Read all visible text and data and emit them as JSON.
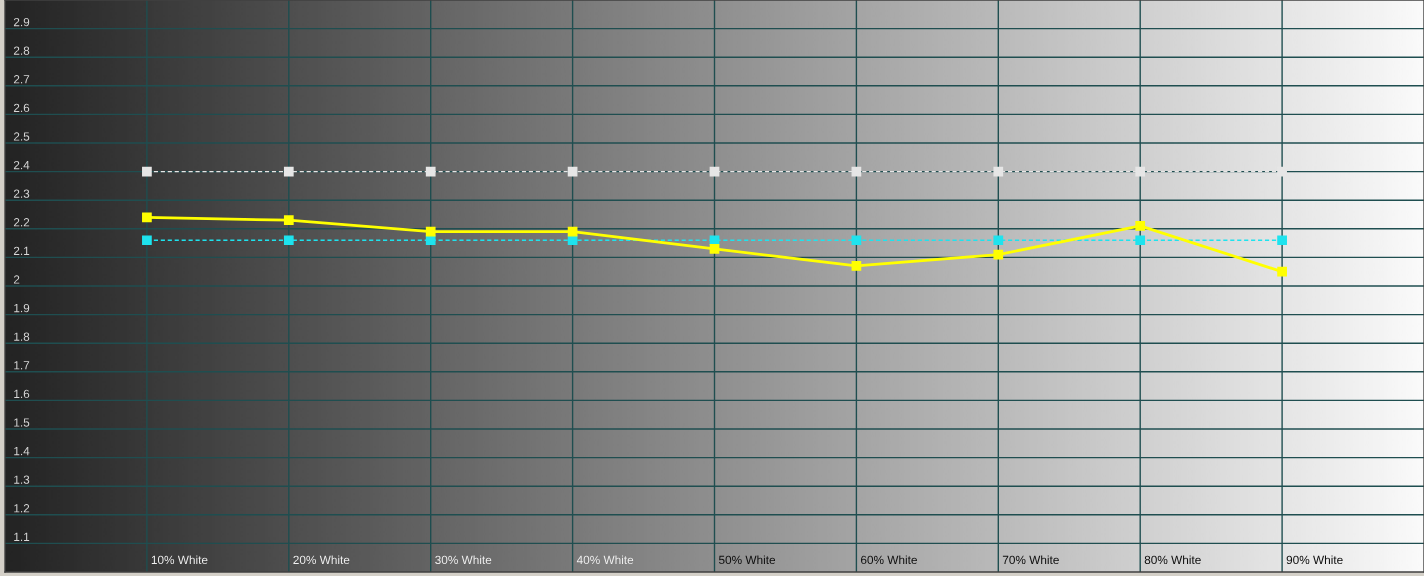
{
  "chart_data": {
    "type": "line",
    "categories": [
      "10% White",
      "20% White",
      "30% White",
      "40% White",
      "50% White",
      "60% White",
      "70% White",
      "80% White",
      "90% White"
    ],
    "series": [
      {
        "color": "#e6e6e6",
        "line_style": "dashed",
        "values": [
          2.4,
          2.4,
          2.4,
          2.4,
          2.4,
          2.4,
          2.4,
          2.4,
          2.4
        ]
      },
      {
        "color": "#1ee3ee",
        "line_style": "dashed",
        "values": [
          2.16,
          2.16,
          2.16,
          2.16,
          2.16,
          2.16,
          2.16,
          2.16,
          2.16
        ]
      },
      {
        "color": "#ffff00",
        "line_style": "solid",
        "values": [
          2.24,
          2.23,
          2.19,
          2.19,
          2.13,
          2.07,
          2.11,
          2.21,
          2.05
        ]
      }
    ],
    "marker": "square",
    "ylim": [
      1,
      3
    ],
    "yticks": [
      1.1,
      1.2,
      1.3,
      1.4,
      1.5,
      1.6,
      1.7,
      1.8,
      1.9,
      2,
      2.1,
      2.2,
      2.3,
      2.4,
      2.5,
      2.6,
      2.7,
      2.8,
      2.9
    ],
    "grid": true
  }
}
